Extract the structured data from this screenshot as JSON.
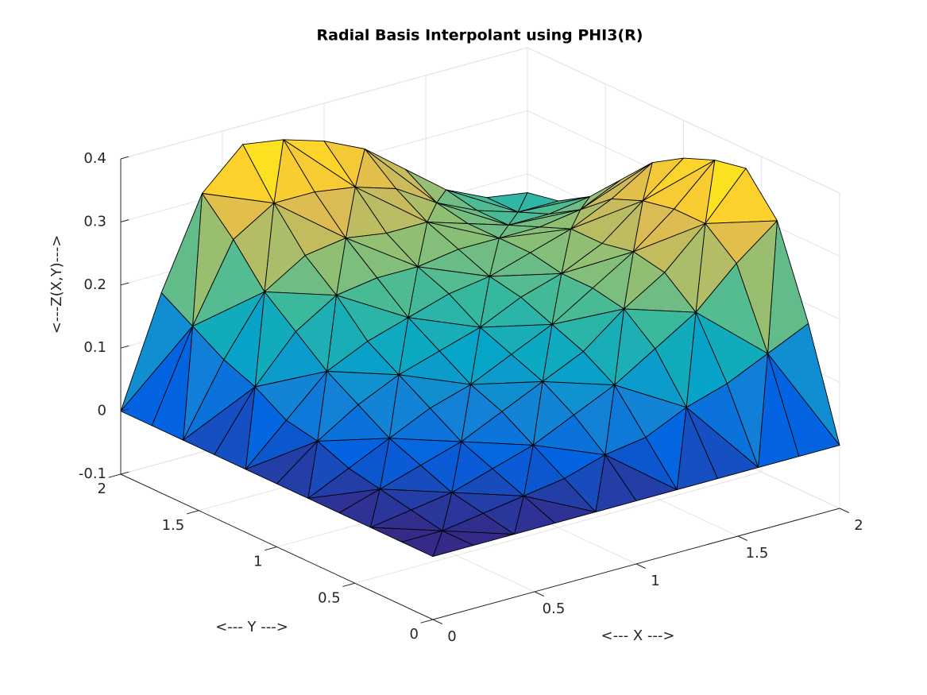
{
  "chart_data": {
    "type": "surface",
    "title": "Radial Basis Interpolant using PHI3(R)",
    "xlabel": "<--- X --->",
    "ylabel": "<--- Y --->",
    "zlabel": "<---Z(X,Y)--->",
    "x": [
      0,
      0.2,
      0.4,
      0.6,
      0.8,
      1,
      1.2,
      1.4,
      1.6,
      1.8,
      2
    ],
    "y": [
      0,
      0.2,
      0.4,
      0.6,
      0.8,
      1,
      1.2,
      1.4,
      1.6,
      1.8,
      2
    ],
    "z": [
      [
        0,
        0,
        0,
        0,
        0,
        0,
        0,
        0,
        0,
        0,
        0
      ],
      [
        0,
        0,
        0.01,
        0.02,
        0.03,
        0.05,
        0.06,
        0.09,
        0.11,
        0.14,
        0.17
      ],
      [
        0,
        0.01,
        0.02,
        0.04,
        0.06,
        0.09,
        0.12,
        0.16,
        0.2,
        0.26,
        0.31
      ],
      [
        0,
        0.02,
        0.04,
        0.06,
        0.09,
        0.12,
        0.15,
        0.2,
        0.24,
        0.3,
        0.37
      ],
      [
        0,
        0.03,
        0.06,
        0.09,
        0.11,
        0.14,
        0.17,
        0.21,
        0.25,
        0.3,
        0.36
      ],
      [
        0,
        0.05,
        0.09,
        0.12,
        0.14,
        0.16,
        0.19,
        0.21,
        0.24,
        0.29,
        0.34
      ],
      [
        0,
        0.06,
        0.12,
        0.15,
        0.17,
        0.19,
        0.2,
        0.22,
        0.24,
        0.27,
        0.31
      ],
      [
        0,
        0.09,
        0.16,
        0.2,
        0.21,
        0.21,
        0.22,
        0.22,
        0.22,
        0.23,
        0.26
      ],
      [
        0,
        0.11,
        0.2,
        0.24,
        0.25,
        0.24,
        0.24,
        0.22,
        0.2,
        0.2,
        0.21
      ],
      [
        0,
        0.14,
        0.26,
        0.3,
        0.3,
        0.29,
        0.27,
        0.23,
        0.2,
        0.18,
        0.18
      ],
      [
        0,
        0.17,
        0.31,
        0.37,
        0.36,
        0.34,
        0.31,
        0.26,
        0.21,
        0.18,
        0.17
      ]
    ],
    "xlim": [
      0,
      2
    ],
    "ylim": [
      0,
      2
    ],
    "zlim": [
      -0.1,
      0.4
    ],
    "xticks": [
      0,
      0.5,
      1,
      1.5,
      2
    ],
    "yticks": [
      0,
      0.5,
      1,
      1.5,
      2
    ],
    "zticks": [
      -0.1,
      0,
      0.1,
      0.2,
      0.3,
      0.4
    ],
    "grid": true,
    "colormap": [
      "#352a87",
      "#0363e1",
      "#1485d4",
      "#06a7c6",
      "#38b99e",
      "#92bf73",
      "#d9ba56",
      "#fcce2e",
      "#f9fb0e"
    ]
  }
}
